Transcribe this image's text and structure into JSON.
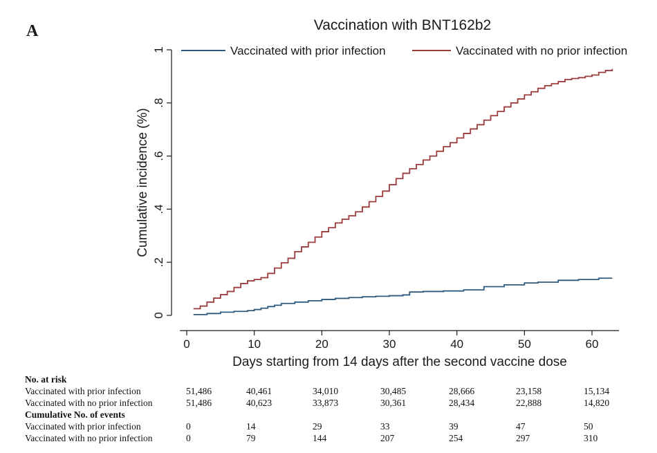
{
  "panel_label": "A",
  "chart_data": {
    "type": "line",
    "line_shape": "step",
    "title": "Vaccination with BNT162b2",
    "xlabel": "Days starting from 14 days after the second vaccine dose",
    "ylabel": "Cumulative incidence (%)",
    "xlim": [
      0,
      64
    ],
    "ylim": [
      0,
      1
    ],
    "x_ticks": [
      0,
      10,
      20,
      30,
      40,
      50,
      60
    ],
    "x_tick_labels": [
      "0",
      "10",
      "20",
      "30",
      "40",
      "50",
      "60"
    ],
    "y_ticks": [
      0,
      0.2,
      0.4,
      0.6,
      0.8,
      1
    ],
    "y_tick_labels": [
      "0",
      ".2",
      ".4",
      ".6",
      ".8",
      "1"
    ],
    "grid": false,
    "legend_position": "top",
    "series": [
      {
        "name": "Vaccinated with prior infection",
        "color": "#2f5a7d",
        "x": [
          1,
          3,
          5,
          7,
          9,
          10,
          11,
          12,
          13,
          14,
          16,
          18,
          20,
          22,
          24,
          26,
          28,
          30,
          32,
          33,
          35,
          38,
          41,
          44,
          47,
          50,
          52,
          55,
          58,
          61,
          63
        ],
        "y": [
          0.003,
          0.007,
          0.012,
          0.015,
          0.018,
          0.022,
          0.027,
          0.033,
          0.038,
          0.045,
          0.05,
          0.055,
          0.06,
          0.064,
          0.067,
          0.07,
          0.072,
          0.074,
          0.077,
          0.088,
          0.09,
          0.092,
          0.096,
          0.108,
          0.115,
          0.122,
          0.125,
          0.132,
          0.135,
          0.14,
          0.14
        ]
      },
      {
        "name": "Vaccinated with no prior infection",
        "color": "#9c3b3b",
        "x": [
          1,
          2,
          3,
          4,
          5,
          6,
          7,
          8,
          9,
          10,
          11,
          12,
          13,
          14,
          15,
          16,
          17,
          18,
          19,
          20,
          21,
          22,
          23,
          24,
          25,
          26,
          27,
          28,
          29,
          30,
          31,
          32,
          33,
          34,
          35,
          36,
          37,
          38,
          39,
          40,
          41,
          42,
          43,
          44,
          45,
          46,
          47,
          48,
          49,
          50,
          51,
          52,
          53,
          54,
          55,
          56,
          57,
          58,
          59,
          60,
          61,
          62,
          63
        ],
        "y": [
          0.025,
          0.035,
          0.05,
          0.065,
          0.078,
          0.09,
          0.105,
          0.12,
          0.13,
          0.135,
          0.142,
          0.158,
          0.178,
          0.198,
          0.215,
          0.24,
          0.258,
          0.275,
          0.295,
          0.315,
          0.33,
          0.348,
          0.362,
          0.375,
          0.39,
          0.408,
          0.428,
          0.448,
          0.468,
          0.492,
          0.515,
          0.535,
          0.552,
          0.568,
          0.585,
          0.6,
          0.618,
          0.635,
          0.65,
          0.668,
          0.685,
          0.702,
          0.718,
          0.735,
          0.752,
          0.768,
          0.785,
          0.8,
          0.815,
          0.83,
          0.842,
          0.855,
          0.865,
          0.872,
          0.88,
          0.888,
          0.892,
          0.895,
          0.9,
          0.905,
          0.915,
          0.922,
          0.928
        ]
      }
    ]
  },
  "risk_table": {
    "heading_at_risk": "No. at risk",
    "heading_events": "Cumulative No. of events",
    "at_risk": [
      {
        "label": "Vaccinated with prior infection",
        "values": [
          "51,486",
          "40,461",
          "34,010",
          "30,485",
          "28,666",
          "23,158",
          "15,134"
        ]
      },
      {
        "label": "Vaccinated with no prior infection",
        "values": [
          "51,486",
          "40,623",
          "33,873",
          "30,361",
          "28,434",
          "22,888",
          "14,820"
        ]
      }
    ],
    "events": [
      {
        "label": "Vaccinated with prior infection",
        "values": [
          "0",
          "14",
          "29",
          "33",
          "39",
          "47",
          "50"
        ]
      },
      {
        "label": "Vaccinated with no prior infection",
        "values": [
          "0",
          "79",
          "144",
          "207",
          "254",
          "297",
          "310"
        ]
      }
    ]
  }
}
